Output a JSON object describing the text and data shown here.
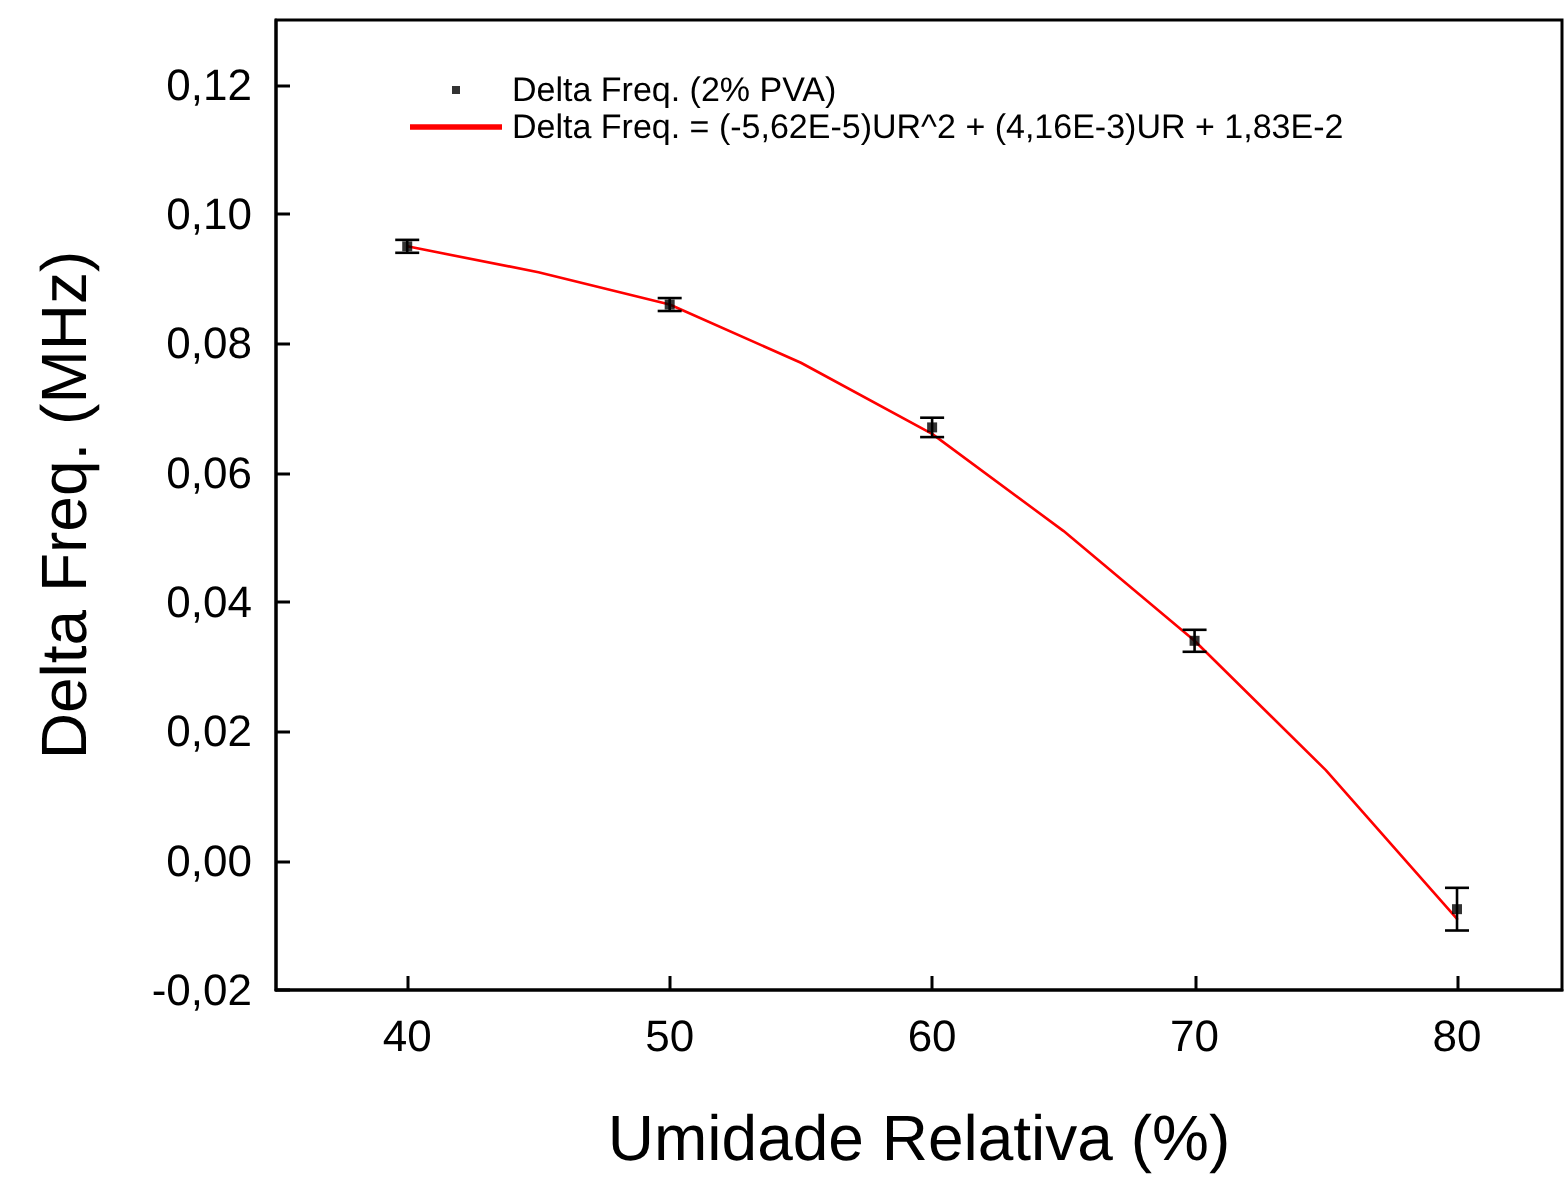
{
  "chart_data": {
    "type": "scatter",
    "xlabel": "Umidade Relativa (%)",
    "ylabel": "Delta Freq. (MHz)",
    "xlim": [
      35,
      84
    ],
    "xticks": [
      40,
      50,
      60,
      70,
      80
    ],
    "ylim": [
      -0.02,
      0.13
    ],
    "yticks": [
      {
        "value": -0.02,
        "label": "-0,02"
      },
      {
        "value": 0,
        "label": "0,00"
      },
      {
        "value": 0.02,
        "label": "0,02"
      },
      {
        "value": 0.04,
        "label": "0,04"
      },
      {
        "value": 0.06,
        "label": "0,06"
      },
      {
        "value": 0.08,
        "label": "0,08"
      },
      {
        "value": 0.1,
        "label": "0,10"
      },
      {
        "value": 0.12,
        "label": "0,12"
      }
    ],
    "grid": false,
    "legend": "top left",
    "series": [
      {
        "name": "Delta Freq. (2% PVA)",
        "marker": "square",
        "color": "#000000",
        "x": [
          40,
          50,
          60,
          70,
          80
        ],
        "values": [
          0.095,
          0.086,
          0.067,
          0.034,
          -0.0075
        ],
        "errors": [
          0.001,
          0.001,
          0.0015,
          0.0017,
          0.0033
        ]
      },
      {
        "name": "Delta Freq. = (-5,62E-5)UR^2 + (4,16E-3)UR + 1,83E-2",
        "type": "line",
        "marker": "none",
        "line_style": "solid",
        "color": "#ff0000",
        "x": [
          40,
          45,
          50,
          55,
          60,
          65,
          70,
          75,
          80
        ],
        "values": [
          0.095,
          0.091,
          0.086,
          0.077,
          0.066,
          0.051,
          0.034,
          0.014,
          -0.009
        ]
      }
    ]
  }
}
